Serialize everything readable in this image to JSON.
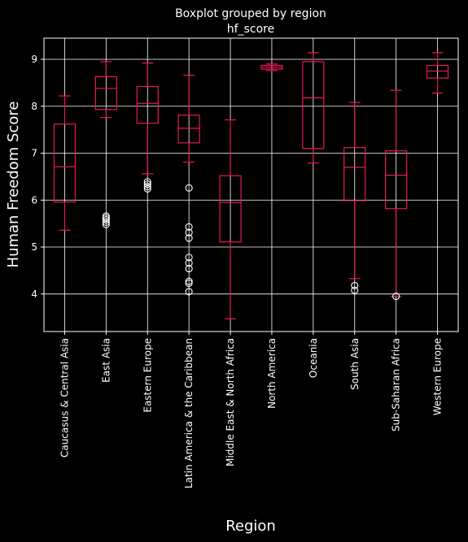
{
  "chart_data": {
    "type": "boxplot",
    "title": "Boxplot grouped by region",
    "subtitle": "hf_score",
    "xlabel": "Region",
    "ylabel": "Human Freedom Score",
    "ylim": [
      3.2,
      9.45
    ],
    "yticks": [
      4,
      5,
      6,
      7,
      8,
      9
    ],
    "grid": true,
    "colors": {
      "background": "#000000",
      "box": "#e8175d",
      "grid": "#ffffff",
      "text": "#ffffff",
      "flier": "#ffffff"
    },
    "categories": [
      "Caucasus & Central Asia",
      "East Asia",
      "Eastern Europe",
      "Latin America & the Caribbean",
      "Middle East & North Africa",
      "North America",
      "Oceania",
      "South Asia",
      "Sub-Saharan Africa",
      "Western Europe"
    ],
    "boxes": [
      {
        "whislo": 5.36,
        "q1": 5.96,
        "med": 6.71,
        "q3": 7.62,
        "whishi": 8.22,
        "fliers": []
      },
      {
        "whislo": 7.76,
        "q1": 7.93,
        "med": 8.38,
        "q3": 8.63,
        "whishi": 8.95,
        "fliers": [
          5.48,
          5.53,
          5.58,
          5.62,
          5.66
        ]
      },
      {
        "whislo": 6.56,
        "q1": 7.64,
        "med": 8.06,
        "q3": 8.42,
        "whishi": 8.92,
        "fliers": [
          6.24,
          6.29,
          6.34,
          6.39
        ]
      },
      {
        "whislo": 6.81,
        "q1": 7.22,
        "med": 7.53,
        "q3": 7.81,
        "whishi": 8.66,
        "fliers": [
          6.26,
          5.43,
          5.31,
          5.19,
          4.78,
          4.66,
          4.54,
          4.27,
          4.23,
          4.05
        ]
      },
      {
        "whislo": 3.47,
        "q1": 5.11,
        "med": 5.95,
        "q3": 6.52,
        "whishi": 7.71,
        "fliers": []
      },
      {
        "whislo": 8.76,
        "q1": 8.79,
        "med": 8.83,
        "q3": 8.87,
        "whishi": 8.9,
        "fliers": []
      },
      {
        "whislo": 6.79,
        "q1": 7.1,
        "med": 8.18,
        "q3": 8.95,
        "whishi": 9.14,
        "fliers": []
      },
      {
        "whislo": 4.33,
        "q1": 5.99,
        "med": 6.7,
        "q3": 7.12,
        "whishi": 8.08,
        "fliers": [
          4.18,
          4.08
        ]
      },
      {
        "whislo": 3.95,
        "q1": 5.82,
        "med": 6.53,
        "q3": 7.05,
        "whishi": 8.34,
        "fliers": [
          3.95
        ]
      },
      {
        "whislo": 8.28,
        "q1": 8.6,
        "med": 8.75,
        "q3": 8.87,
        "whishi": 9.14,
        "fliers": []
      }
    ]
  }
}
